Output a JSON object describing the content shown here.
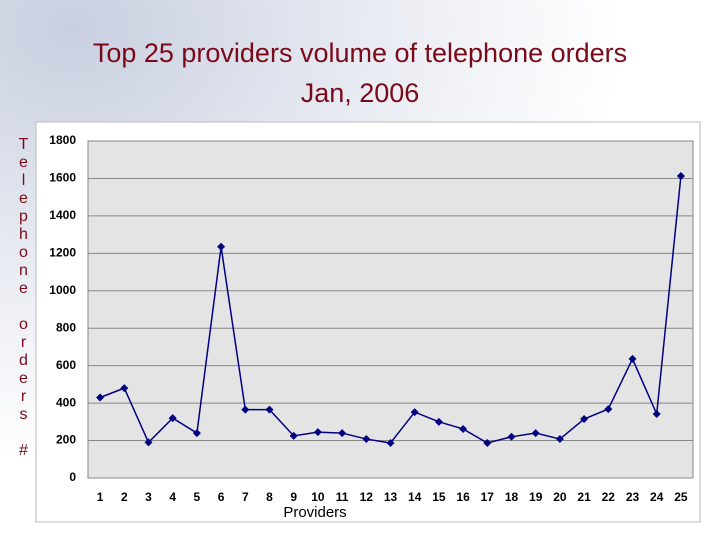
{
  "chart_data": {
    "type": "line",
    "title": "Top 25 providers volume of telephone orders",
    "subtitle": "Jan, 2006",
    "y_label": "Telephone orders #",
    "x_label": "Providers",
    "categories": [
      "1",
      "2",
      "3",
      "4",
      "5",
      "6",
      "7",
      "8",
      "9",
      "10",
      "11",
      "12",
      "13",
      "14",
      "15",
      "16",
      "17",
      "18",
      "19",
      "20",
      "21",
      "22",
      "23",
      "24",
      "25"
    ],
    "series": [
      {
        "name": "Telephone orders",
        "color": "#000080",
        "values": [
          430,
          480,
          190,
          320,
          240,
          1235,
          365,
          365,
          225,
          245,
          240,
          208,
          187,
          352,
          300,
          262,
          187,
          220,
          240,
          208,
          315,
          368,
          636,
          342,
          1613
        ]
      }
    ],
    "ylim": [
      0,
      1800
    ],
    "yticks": [
      0,
      200,
      400,
      600,
      800,
      1000,
      1200,
      1400,
      1600,
      1800
    ],
    "grid": true
  }
}
